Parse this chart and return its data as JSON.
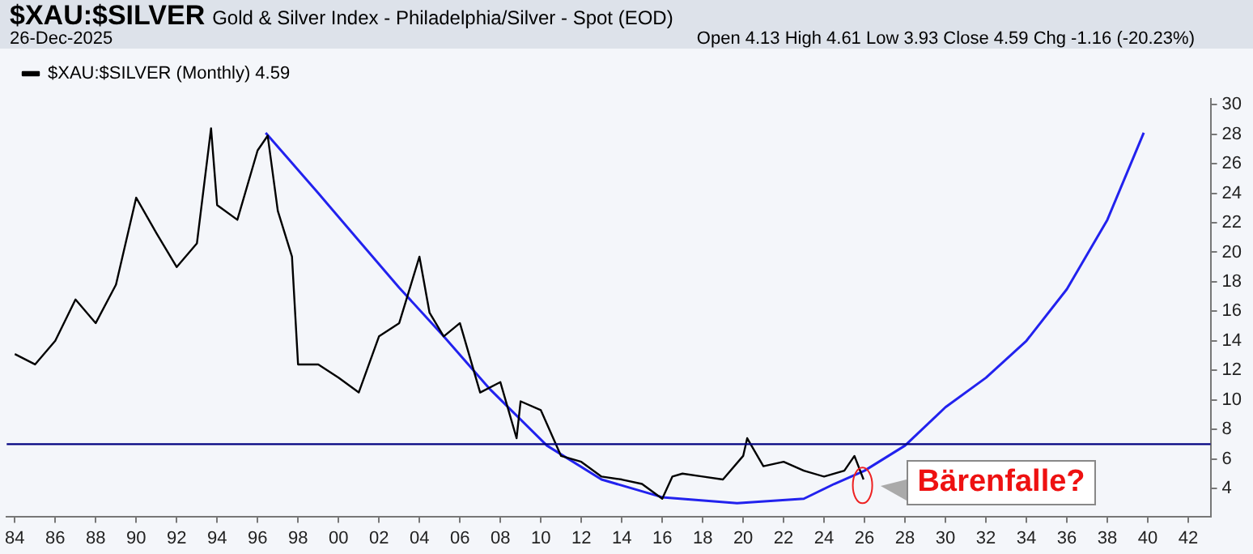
{
  "chart_data": {
    "type": "line",
    "title": "$XAU:$SILVER",
    "subtitle": "Gold & Silver Index - Philadelphia/Silver - Spot (EOD)",
    "annotations": [
      "26-Dec-2025",
      "Open 4.13 High 4.61 Low 3.93 Close 4.59 Chg -1.16 (-20.23%)",
      {
        "text": "Bärenfalle?",
        "x": 2025.9,
        "y": 4.2
      }
    ],
    "series": [
      {
        "name": "$XAU:$SILVER (Monthly) 4.59",
        "color": "#000000",
        "x": [
          1984,
          1985,
          1986,
          1987,
          1988,
          1989,
          1990,
          1991,
          1992,
          1993,
          1993.7,
          1994,
          1995,
          1996,
          1996.5,
          1997,
          1997.7,
          1998,
          1999,
          2000,
          2001,
          2002,
          2003,
          2004,
          2004.5,
          2005.2,
          2006,
          2007,
          2008,
          2008.8,
          2009,
          2010,
          2011,
          2012,
          2013,
          2014,
          2015,
          2016,
          2016.5,
          2017,
          2018,
          2019,
          2020,
          2020.2,
          2021,
          2022,
          2023,
          2024,
          2025,
          2025.5,
          2025.95
        ],
        "values": [
          13.1,
          12.4,
          14.0,
          16.8,
          15.2,
          17.8,
          23.7,
          21.3,
          19.0,
          20.6,
          28.4,
          23.2,
          22.2,
          26.9,
          27.9,
          22.8,
          19.7,
          12.4,
          12.4,
          11.5,
          10.5,
          14.3,
          15.2,
          19.7,
          15.9,
          14.3,
          15.2,
          10.5,
          11.2,
          7.4,
          9.9,
          9.3,
          6.2,
          5.8,
          4.8,
          4.6,
          4.3,
          3.3,
          4.8,
          5.0,
          4.8,
          4.6,
          6.2,
          7.4,
          5.5,
          5.8,
          5.2,
          4.8,
          5.2,
          6.2,
          4.6
        ]
      },
      {
        "color": "#2222ee",
        "x": [
          1996.4,
          1999,
          2001,
          2003,
          2005.2,
          2007.5,
          2010.3,
          2013,
          2016,
          2019.7,
          2023,
          2024.5,
          2026,
          2028,
          2030,
          2032,
          2034,
          2036,
          2038,
          2039.8
        ],
        "values": [
          28.1,
          24.0,
          20.8,
          17.6,
          14.3,
          10.7,
          6.9,
          4.6,
          3.4,
          3.0,
          3.3,
          4.3,
          5.2,
          6.9,
          9.5,
          11.5,
          14.0,
          17.5,
          22.2,
          28.1
        ]
      }
    ],
    "ref_lines": [
      {
        "axis": "y",
        "value": 7,
        "color": "#000080"
      }
    ],
    "xlim": [
      1983.6,
      2043.1
    ],
    "xticks": [
      {
        "value": 1984,
        "label": "84"
      },
      {
        "value": 1986,
        "label": "86"
      },
      {
        "value": 1988,
        "label": "88"
      },
      {
        "value": 1990,
        "label": "90"
      },
      {
        "value": 1992,
        "label": "92"
      },
      {
        "value": 1994,
        "label": "94"
      },
      {
        "value": 1996,
        "label": "96"
      },
      {
        "value": 1998,
        "label": "98"
      },
      {
        "value": 2000,
        "label": "00"
      },
      {
        "value": 2002,
        "label": "02"
      },
      {
        "value": 2004,
        "label": "04"
      },
      {
        "value": 2006,
        "label": "06"
      },
      {
        "value": 2008,
        "label": "08"
      },
      {
        "value": 2010,
        "label": "10"
      },
      {
        "value": 2012,
        "label": "12"
      },
      {
        "value": 2014,
        "label": "14"
      },
      {
        "value": 2016,
        "label": "16"
      },
      {
        "value": 2018,
        "label": "18"
      },
      {
        "value": 2020,
        "label": "20"
      },
      {
        "value": 2022,
        "label": "22"
      },
      {
        "value": 2024,
        "label": "24"
      },
      {
        "value": 2026,
        "label": "26"
      },
      {
        "value": 2028,
        "label": "28"
      },
      {
        "value": 2030,
        "label": "30"
      },
      {
        "value": 2032,
        "label": "32"
      },
      {
        "value": 2034,
        "label": "34"
      },
      {
        "value": 2036,
        "label": "36"
      },
      {
        "value": 2038,
        "label": "38"
      },
      {
        "value": 2040,
        "label": "40"
      },
      {
        "value": 2042,
        "label": "42"
      }
    ],
    "ylim": [
      2.1,
      30.4
    ],
    "yticks": [
      4,
      6,
      8,
      10,
      12,
      14,
      16,
      18,
      20,
      22,
      24,
      26,
      28,
      30
    ],
    "grid": false,
    "legend": "top left",
    "marker": "none",
    "line_style": "solid"
  }
}
